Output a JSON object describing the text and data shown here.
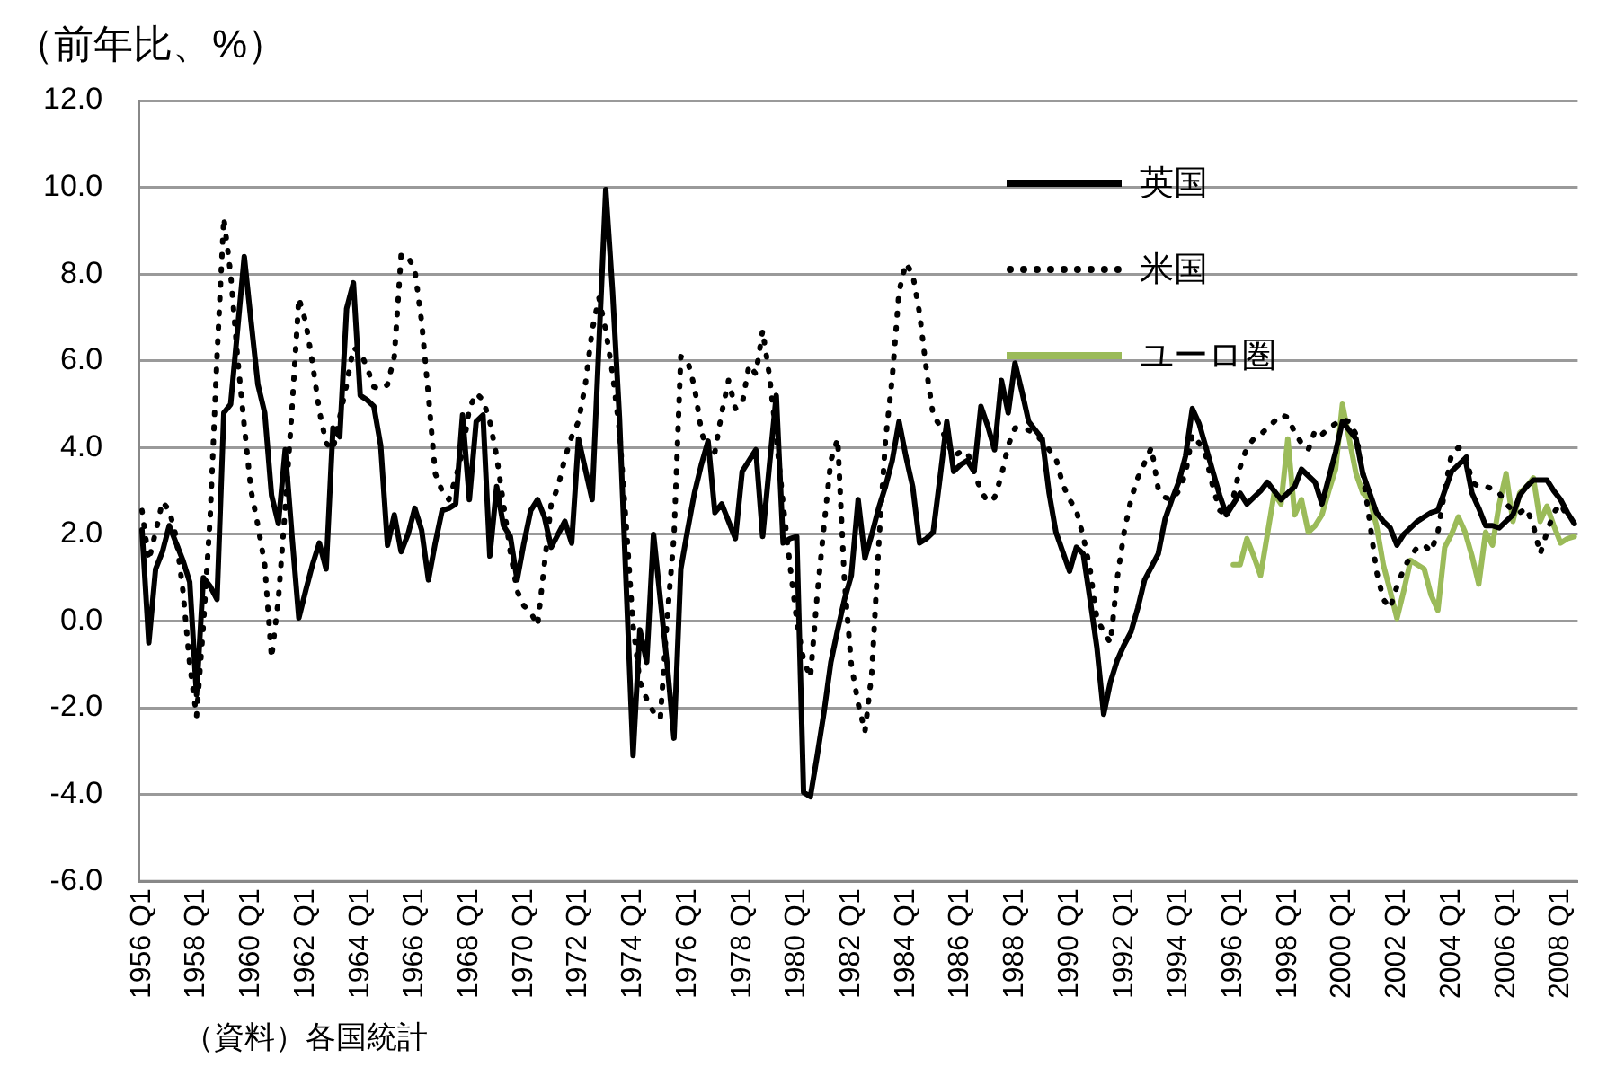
{
  "chart_data": {
    "type": "line",
    "ylabel": "（前年比、%）",
    "annotations": [
      "（資料）各国統計"
    ],
    "categories": [
      "1956 Q1",
      null,
      null,
      null,
      null,
      null,
      null,
      null,
      "1958 Q1",
      null,
      null,
      null,
      null,
      null,
      null,
      null,
      "1960 Q1",
      null,
      null,
      null,
      null,
      null,
      null,
      null,
      "1962 Q1",
      null,
      null,
      null,
      null,
      null,
      null,
      null,
      "1964 Q1",
      null,
      null,
      null,
      null,
      null,
      null,
      null,
      "1966 Q1",
      null,
      null,
      null,
      null,
      null,
      null,
      null,
      "1968 Q1",
      null,
      null,
      null,
      null,
      null,
      null,
      null,
      "1970 Q1",
      null,
      null,
      null,
      null,
      null,
      null,
      null,
      "1972 Q1",
      null,
      null,
      null,
      null,
      null,
      null,
      null,
      "1974 Q1",
      null,
      null,
      null,
      null,
      null,
      null,
      null,
      "1976 Q1",
      null,
      null,
      null,
      null,
      null,
      null,
      null,
      "1978 Q1",
      null,
      null,
      null,
      null,
      null,
      null,
      null,
      "1980 Q1",
      null,
      null,
      null,
      null,
      null,
      null,
      null,
      "1982 Q1",
      null,
      null,
      null,
      null,
      null,
      null,
      null,
      "1984 Q1",
      null,
      null,
      null,
      null,
      null,
      null,
      null,
      "1986 Q1",
      null,
      null,
      null,
      null,
      null,
      null,
      null,
      "1988 Q1",
      null,
      null,
      null,
      null,
      null,
      null,
      null,
      "1990 Q1",
      null,
      null,
      null,
      null,
      null,
      null,
      null,
      "1992 Q1",
      null,
      null,
      null,
      null,
      null,
      null,
      null,
      "1994 Q1",
      null,
      null,
      null,
      null,
      null,
      null,
      null,
      "1996 Q1",
      null,
      null,
      null,
      null,
      null,
      null,
      null,
      "1998 Q1",
      null,
      null,
      null,
      null,
      null,
      null,
      null,
      "2000 Q1",
      null,
      null,
      null,
      null,
      null,
      null,
      null,
      "2002 Q1",
      null,
      null,
      null,
      null,
      null,
      null,
      null,
      "2004 Q1",
      null,
      null,
      null,
      null,
      null,
      null,
      null,
      "2006 Q1",
      null,
      null,
      null,
      null,
      null,
      null,
      null,
      "2008 Q1",
      null,
      null
    ],
    "ylim": [
      -6,
      12
    ],
    "yticks": [
      {
        "value": -6,
        "label": "-6.0"
      },
      {
        "value": -4,
        "label": "-4.0"
      },
      {
        "value": -2,
        "label": "-2.0"
      },
      {
        "value": 0,
        "label": "0.0"
      },
      {
        "value": 2,
        "label": "2.0"
      },
      {
        "value": 4,
        "label": "4.0"
      },
      {
        "value": 6,
        "label": "6.0"
      },
      {
        "value": 8,
        "label": "8.0"
      },
      {
        "value": 10,
        "label": "10.0"
      },
      {
        "value": 12,
        "label": "12.0"
      }
    ],
    "grid": "y",
    "legend": "top right",
    "marker": "none",
    "series": [
      {
        "name": "英国",
        "color": "#000000",
        "line_style": "solid",
        "values": [
          2.1,
          -0.5,
          1.2,
          1.6,
          2.2,
          1.8,
          1.4,
          0.9,
          -1.7,
          1.0,
          0.8,
          0.5,
          4.8,
          5.0,
          6.7,
          8.4,
          6.9,
          5.45,
          4.8,
          2.9,
          2.25,
          3.95,
          1.95,
          0.07,
          0.7,
          1.3,
          1.8,
          1.2,
          4.45,
          4.25,
          7.2,
          7.8,
          5.2,
          5.1,
          4.95,
          4.05,
          1.75,
          2.45,
          1.6,
          2.0,
          2.6,
          2.1,
          0.95,
          1.8,
          2.55,
          2.6,
          2.7,
          4.75,
          2.8,
          4.6,
          4.75,
          1.5,
          3.1,
          2.2,
          1.95,
          0.95,
          1.8,
          2.55,
          2.8,
          2.4,
          1.7,
          2.0,
          2.3,
          1.8,
          4.2,
          3.5,
          2.8,
          6.4,
          9.95,
          7.6,
          4.7,
          0.8,
          -3.1,
          -0.2,
          -0.95,
          2.0,
          0.5,
          -1.0,
          -2.7,
          1.2,
          2.1,
          2.95,
          3.6,
          4.15,
          2.5,
          2.7,
          2.3,
          1.9,
          3.45,
          3.7,
          3.95,
          1.95,
          3.6,
          5.2,
          1.8,
          1.9,
          1.95,
          -3.95,
          -4.05,
          -3.1,
          -2.1,
          -0.95,
          -0.2,
          0.5,
          1.05,
          2.8,
          1.45,
          2.0,
          2.6,
          3.1,
          3.7,
          4.6,
          3.8,
          3.1,
          1.8,
          1.9,
          2.05,
          3.3,
          4.6,
          3.45,
          3.6,
          3.7,
          3.45,
          4.95,
          4.5,
          3.95,
          5.55,
          4.8,
          5.95,
          5.3,
          4.6,
          4.4,
          4.2,
          2.95,
          2.05,
          1.6,
          1.15,
          1.7,
          1.55,
          0.5,
          -0.6,
          -2.15,
          -1.4,
          -0.9,
          -0.55,
          -0.25,
          0.3,
          0.95,
          1.25,
          1.55,
          2.35,
          2.8,
          3.2,
          3.8,
          4.9,
          4.55,
          4.0,
          3.45,
          2.9,
          2.45,
          2.7,
          2.95,
          2.7,
          2.85,
          3.0,
          3.2,
          3.0,
          2.8,
          2.95,
          3.1,
          3.5,
          3.35,
          3.2,
          2.7,
          3.3,
          3.9,
          4.6,
          4.4,
          4.2,
          3.4,
          2.95,
          2.5,
          2.3,
          2.15,
          1.75,
          2.0,
          2.15,
          2.3,
          2.4,
          2.5,
          2.55,
          3.0,
          3.45,
          3.6,
          3.75,
          2.95,
          2.6,
          2.2,
          2.2,
          2.15,
          2.3,
          2.45,
          2.9,
          3.1,
          3.25,
          3.25,
          3.25,
          3.0,
          2.8,
          2.5,
          2.25
        ]
      },
      {
        "name": "米国",
        "color": "#000000",
        "line_style": "dotted",
        "values": [
          2.55,
          1.4,
          2.05,
          2.75,
          2.55,
          1.95,
          0.7,
          -1.0,
          -2.2,
          -0.1,
          2.4,
          6.1,
          9.3,
          8.0,
          6.1,
          4.5,
          3.0,
          2.2,
          1.3,
          -0.85,
          0.5,
          2.6,
          4.9,
          7.45,
          6.9,
          5.95,
          4.85,
          4.1,
          3.95,
          4.7,
          5.45,
          6.3,
          6.2,
          5.85,
          5.4,
          5.35,
          5.45,
          6.1,
          8.45,
          8.4,
          8.1,
          6.9,
          5.2,
          3.4,
          3.0,
          2.8,
          3.3,
          3.9,
          4.9,
          5.25,
          5.1,
          4.6,
          3.8,
          2.7,
          1.6,
          0.7,
          0.35,
          0.2,
          -0.1,
          1.3,
          2.7,
          3.1,
          3.75,
          4.25,
          4.6,
          5.45,
          6.7,
          7.45,
          6.7,
          5.7,
          4.4,
          2.2,
          -0.1,
          -1.4,
          -1.8,
          -2.1,
          -2.25,
          0.06,
          1.95,
          6.1,
          6.0,
          5.4,
          4.4,
          3.8,
          3.9,
          4.8,
          5.55,
          4.9,
          5.0,
          5.9,
          5.7,
          6.7,
          5.65,
          4.25,
          2.7,
          1.3,
          0.0,
          -0.9,
          -1.3,
          0.6,
          2.2,
          3.7,
          4.2,
          0.9,
          -1.0,
          -1.9,
          -2.55,
          -1.2,
          1.7,
          4.15,
          5.6,
          7.6,
          8.25,
          8.0,
          7.1,
          5.8,
          4.75,
          4.5,
          4.15,
          3.8,
          3.9,
          3.9,
          3.45,
          3.0,
          2.75,
          2.85,
          3.35,
          4.05,
          4.45,
          4.45,
          4.4,
          4.3,
          4.15,
          3.95,
          3.75,
          3.15,
          2.8,
          2.55,
          1.95,
          1.2,
          0.06,
          -0.25,
          -0.5,
          1.0,
          2.05,
          2.8,
          3.3,
          3.65,
          4.0,
          3.05,
          2.85,
          2.8,
          3.0,
          3.4,
          4.3,
          4.1,
          3.8,
          3.1,
          2.55,
          2.45,
          2.85,
          3.55,
          4.0,
          4.2,
          4.3,
          4.45,
          4.6,
          4.75,
          4.7,
          4.35,
          4.1,
          3.95,
          4.4,
          4.3,
          4.45,
          4.55,
          4.65,
          4.6,
          4.3,
          3.4,
          2.3,
          1.15,
          0.5,
          0.3,
          0.8,
          1.2,
          1.5,
          1.7,
          1.75,
          1.6,
          2.05,
          3.0,
          3.85,
          4.0,
          3.9,
          3.2,
          3.1,
          3.1,
          3.05,
          2.95,
          2.7,
          2.55,
          2.5,
          2.6,
          2.2,
          1.55,
          2.05,
          2.5,
          2.7,
          2.4,
          null
        ]
      },
      {
        "name": "ユーロ圏",
        "color": "#9bbb59",
        "line_style": "solid",
        "values": [
          null,
          null,
          null,
          null,
          null,
          null,
          null,
          null,
          null,
          null,
          null,
          null,
          null,
          null,
          null,
          null,
          null,
          null,
          null,
          null,
          null,
          null,
          null,
          null,
          null,
          null,
          null,
          null,
          null,
          null,
          null,
          null,
          null,
          null,
          null,
          null,
          null,
          null,
          null,
          null,
          null,
          null,
          null,
          null,
          null,
          null,
          null,
          null,
          null,
          null,
          null,
          null,
          null,
          null,
          null,
          null,
          null,
          null,
          null,
          null,
          null,
          null,
          null,
          null,
          null,
          null,
          null,
          null,
          null,
          null,
          null,
          null,
          null,
          null,
          null,
          null,
          null,
          null,
          null,
          null,
          null,
          null,
          null,
          null,
          null,
          null,
          null,
          null,
          null,
          null,
          null,
          null,
          null,
          null,
          null,
          null,
          null,
          null,
          null,
          null,
          null,
          null,
          null,
          null,
          null,
          null,
          null,
          null,
          null,
          null,
          null,
          null,
          null,
          null,
          null,
          null,
          null,
          null,
          null,
          null,
          null,
          null,
          null,
          null,
          null,
          null,
          null,
          null,
          null,
          null,
          null,
          null,
          null,
          null,
          null,
          null,
          null,
          null,
          null,
          null,
          null,
          null,
          null,
          null,
          null,
          null,
          null,
          null,
          null,
          null,
          null,
          null,
          null,
          null,
          null,
          null,
          null,
          null,
          null,
          null,
          1.3,
          1.3,
          1.9,
          1.5,
          1.05,
          2.0,
          2.95,
          2.7,
          4.2,
          2.45,
          2.8,
          2.05,
          2.2,
          2.45,
          3.0,
          3.5,
          5.0,
          4.2,
          3.4,
          2.95,
          2.8,
          2.2,
          1.3,
          0.7,
          0.06,
          0.7,
          1.4,
          1.3,
          1.2,
          0.6,
          0.25,
          1.7,
          2.0,
          2.4,
          2.05,
          1.5,
          0.85,
          2.05,
          1.75,
          2.7,
          3.4,
          2.3,
          2.95,
          3.1,
          3.3,
          2.3,
          2.65,
          2.2,
          1.8,
          1.9,
          1.95
        ]
      }
    ]
  }
}
